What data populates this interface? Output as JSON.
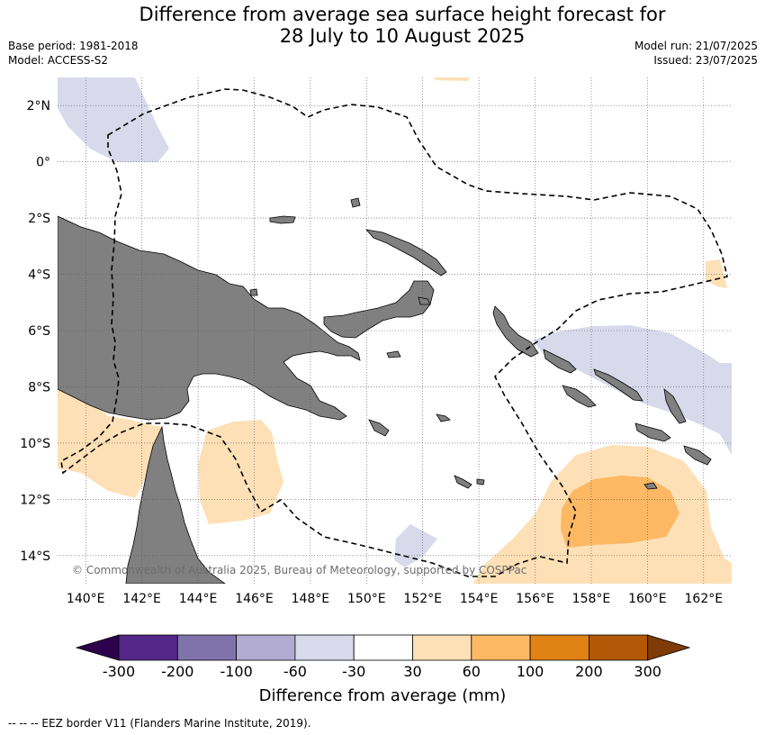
{
  "title": {
    "line1": "Difference from average sea surface height forecast for",
    "line2": "28 July to 10 August 2025"
  },
  "info": {
    "base_period": "Base period: 1981-2018",
    "model": "Model: ACCESS-S2",
    "model_run": "Model run: 21/07/2025",
    "issued": "Issued: 23/07/2025"
  },
  "map": {
    "lon_range": [
      139,
      163
    ],
    "lat_range": [
      -15,
      3
    ],
    "lon_ticks": [
      "140°E",
      "142°E",
      "144°E",
      "146°E",
      "148°E",
      "150°E",
      "152°E",
      "154°E",
      "156°E",
      "158°E",
      "160°E",
      "162°E"
    ],
    "lat_ticks": [
      "2°N",
      "0°",
      "2°S",
      "4°S",
      "6°S",
      "8°S",
      "10°S",
      "12°S",
      "14°S"
    ],
    "copyright": "© Commonwealth of Australia 2025, Bureau of Meteorology, supported by COSPPac",
    "colors": {
      "land": "#808080",
      "ocean": "#ffffff",
      "grid": "#555555",
      "eez": "#000000"
    }
  },
  "colorbar": {
    "title": "Difference from average (mm)",
    "tick_labels": [
      "-300",
      "-200",
      "-100",
      "-60",
      "-30",
      "30",
      "60",
      "100",
      "200",
      "300"
    ],
    "bins": [
      {
        "range": "< -300",
        "color": "#2d004b"
      },
      {
        "range": "-300 to -200",
        "color": "#542788"
      },
      {
        "range": "-200 to -100",
        "color": "#8073ac"
      },
      {
        "range": "-100 to -60",
        "color": "#b2abd2"
      },
      {
        "range": "-60 to -30",
        "color": "#d8daeb"
      },
      {
        "range": "-30 to 30",
        "color": "#ffffff"
      },
      {
        "range": "30 to 60",
        "color": "#fee0b6"
      },
      {
        "range": "60 to 100",
        "color": "#fdb863"
      },
      {
        "range": "100 to 200",
        "color": "#e08214"
      },
      {
        "range": "200 to 300",
        "color": "#b35806"
      },
      {
        "range": "> 300",
        "color": "#7f3b08"
      }
    ]
  },
  "footer": {
    "legend": "-- -- -- EEZ border V11 (Flanders Marine Institute, 2019)."
  }
}
